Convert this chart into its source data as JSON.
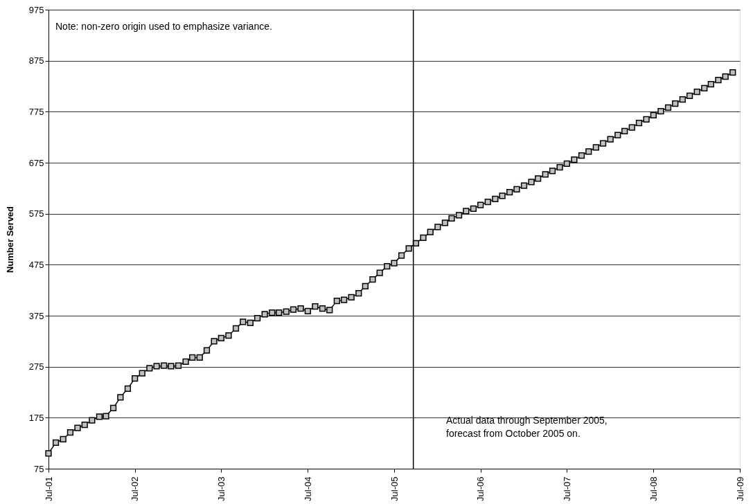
{
  "chart_data": {
    "type": "line",
    "ylabel": "Number Served",
    "x": [
      "2001-07",
      "2001-08",
      "2001-09",
      "2001-10",
      "2001-11",
      "2001-12",
      "2002-01",
      "2002-02",
      "2002-03",
      "2002-04",
      "2002-05",
      "2002-06",
      "2002-07",
      "2002-08",
      "2002-09",
      "2002-10",
      "2002-11",
      "2002-12",
      "2003-01",
      "2003-02",
      "2003-03",
      "2003-04",
      "2003-05",
      "2003-06",
      "2003-07",
      "2003-08",
      "2003-09",
      "2003-10",
      "2003-11",
      "2003-12",
      "2004-01",
      "2004-02",
      "2004-03",
      "2004-04",
      "2004-05",
      "2004-06",
      "2004-07",
      "2004-08",
      "2004-09",
      "2004-10",
      "2004-11",
      "2004-12",
      "2005-01",
      "2005-02",
      "2005-03",
      "2005-04",
      "2005-05",
      "2005-06",
      "2005-07",
      "2005-08",
      "2005-09",
      "2005-10",
      "2005-11",
      "2005-12",
      "2006-01",
      "2006-02",
      "2006-03",
      "2006-04",
      "2006-05",
      "2006-06",
      "2006-07",
      "2006-08",
      "2006-09",
      "2006-10",
      "2006-11",
      "2006-12",
      "2007-01",
      "2007-02",
      "2007-03",
      "2007-04",
      "2007-05",
      "2007-06",
      "2007-07",
      "2007-08",
      "2007-09",
      "2007-10",
      "2007-11",
      "2007-12",
      "2008-01",
      "2008-02",
      "2008-03",
      "2008-04",
      "2008-05",
      "2008-06",
      "2008-07",
      "2008-08",
      "2008-09",
      "2008-10",
      "2008-11",
      "2008-12",
      "2009-01",
      "2009-02",
      "2009-03",
      "2009-04",
      "2009-05",
      "2009-06"
    ],
    "series": [
      {
        "color": "#c0c0c0",
        "values": [
          105,
          126,
          133,
          146,
          155,
          161,
          170,
          177,
          178,
          194,
          215,
          232,
          252,
          262,
          272,
          276,
          277,
          276,
          277,
          285,
          293,
          293,
          307,
          325,
          331,
          336,
          350,
          363,
          361,
          370,
          378,
          381,
          381,
          383,
          387,
          389,
          384,
          393,
          389,
          386,
          404,
          406,
          411,
          419,
          433,
          446,
          459,
          472,
          478,
          493,
          507,
          517,
          528,
          539,
          549,
          557,
          566,
          572,
          580,
          585,
          592,
          598,
          604,
          610,
          617,
          623,
          630,
          637,
          644,
          652,
          659,
          666,
          673,
          681,
          689,
          697,
          705,
          713,
          721,
          729,
          737,
          744,
          753,
          760,
          768,
          776,
          783,
          791,
          799,
          806,
          814,
          821,
          829,
          837,
          844,
          852
        ]
      }
    ],
    "marker": "square",
    "line_style": "solid",
    "xlim": [
      "2001-07",
      "2009-07"
    ],
    "xticks": [
      {
        "value": "2001-07",
        "label": "Jul-01"
      },
      {
        "value": "2002-07",
        "label": "Jul-02"
      },
      {
        "value": "2003-07",
        "label": "Jul-03"
      },
      {
        "value": "2004-07",
        "label": "Jul-04"
      },
      {
        "value": "2005-07",
        "label": "Jul-05"
      },
      {
        "value": "2006-07",
        "label": "Jul-06"
      },
      {
        "value": "2007-07",
        "label": "Jul-07"
      },
      {
        "value": "2008-07",
        "label": "Jul-08"
      },
      {
        "value": "2009-07",
        "label": "Jul-09"
      }
    ],
    "ylim": [
      75,
      975
    ],
    "yticks": [
      75,
      175,
      275,
      375,
      475,
      575,
      675,
      775,
      875,
      975
    ],
    "grid": "y",
    "ref_lines": [
      {
        "axis": "x",
        "value": "2005-09-20",
        "color": "#000000"
      }
    ],
    "annotations": [
      "Note: non-zero origin used to emphasize variance.",
      "Actual data through September 2005,\nforecast from October 2005 on."
    ]
  }
}
